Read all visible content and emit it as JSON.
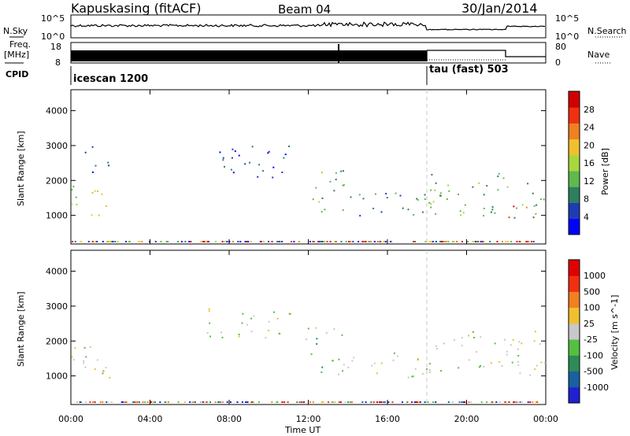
{
  "header": {
    "station": "Kapuskasing (fitACF)",
    "beam": "Beam 04",
    "date": "30/Jan/2014"
  },
  "ops_panels": {
    "nsky_label": "N.Sky",
    "nsky_ticks": [
      "10^5",
      "10^0"
    ],
    "nsearch_label": "N.Search",
    "nsearch_ticks": [
      "10^5",
      "10^0"
    ],
    "freq_label": "Freq.",
    "freq_unit": "[MHz]",
    "freq_ticks": [
      "18",
      "8"
    ],
    "nave_label": "Nave",
    "nave_ticks": [
      "80",
      "0"
    ],
    "cpid_label": "CPID",
    "cpid_segments": [
      {
        "name": "icescan 1200",
        "start_hour": 0,
        "end_hour": 18
      },
      {
        "name": "tau (fast) 503",
        "start_hour": 18,
        "end_hour": 24
      }
    ]
  },
  "chart_data": [
    {
      "type": "heatmap",
      "panel": "power",
      "ylabel": "Slant Range [km]",
      "xlabel": "Time UT",
      "x_ticks": [
        "00:00",
        "04:00",
        "08:00",
        "12:00",
        "16:00",
        "20:00",
        "00:00"
      ],
      "xlim_hours": [
        0,
        24
      ],
      "y_ticks": [
        1000,
        2000,
        3000,
        4000
      ],
      "ylim": [
        180,
        4600
      ],
      "colorbar": {
        "label": "Power [dB]",
        "ticks": [
          "28",
          "24",
          "20",
          "16",
          "12",
          "8",
          "4"
        ],
        "colors": [
          "#0000ff",
          "#1d3cb4",
          "#2d7f5e",
          "#60b84f",
          "#a9d63d",
          "#f0c030",
          "#f08020",
          "#f03010",
          "#d00000"
        ]
      },
      "scatter_regions": [
        {
          "t0": 0.0,
          "t1": 2.3,
          "r0": 1000,
          "r1": 1900,
          "level": 4
        },
        {
          "t0": 0.6,
          "t1": 2.0,
          "r0": 2200,
          "r1": 3000,
          "level": 1
        },
        {
          "t0": 6.8,
          "t1": 11.5,
          "r0": 2100,
          "r1": 3000,
          "level": 1
        },
        {
          "t0": 11.8,
          "t1": 13.8,
          "r0": 1000,
          "r1": 2400,
          "level": 3
        },
        {
          "t0": 13.5,
          "t1": 18.0,
          "r0": 950,
          "r1": 1700,
          "level": 2
        },
        {
          "t0": 18.0,
          "t1": 24.0,
          "r0": 950,
          "r1": 2300,
          "level": 3
        },
        {
          "t0": 21.8,
          "t1": 23.6,
          "r0": 950,
          "r1": 1300,
          "level": 7
        }
      ]
    },
    {
      "type": "heatmap",
      "panel": "velocity",
      "ylabel": "Slant Range [km]",
      "xlabel": "Time UT",
      "x_ticks": [
        "00:00",
        "04:00",
        "08:00",
        "12:00",
        "16:00",
        "20:00",
        "00:00"
      ],
      "xlim_hours": [
        0,
        24
      ],
      "y_ticks": [
        1000,
        2000,
        3000,
        4000
      ],
      "ylim": [
        180,
        4600
      ],
      "colorbar": {
        "label": "Velocity [m s^-1]",
        "ticks": [
          "1000",
          "500",
          "100",
          "25",
          "-25",
          "-100",
          "-500",
          "-1000"
        ],
        "colors": [
          "#2020d0",
          "#1a5fa0",
          "#2e8b57",
          "#55c040",
          "#c8c8c8",
          "#f0c030",
          "#f08020",
          "#f03010",
          "#e00000"
        ]
      },
      "scatter_regions": [
        {
          "t0": 0.0,
          "t1": 2.3,
          "r0": 1000,
          "r1": 1900,
          "level": 4
        },
        {
          "t0": 0.6,
          "t1": 2.0,
          "r0": 900,
          "r1": 1300,
          "level": 5
        },
        {
          "t0": 6.8,
          "t1": 11.5,
          "r0": 2100,
          "r1": 3000,
          "level": 4
        },
        {
          "t0": 11.8,
          "t1": 13.8,
          "r0": 1000,
          "r1": 2400,
          "level": 3
        },
        {
          "t0": 13.5,
          "t1": 18.0,
          "r0": 950,
          "r1": 1700,
          "level": 4
        },
        {
          "t0": 18.0,
          "t1": 24.0,
          "r0": 950,
          "r1": 2300,
          "level": 4
        }
      ]
    }
  ],
  "colors": {
    "ink": "#000000",
    "divider": "#c8c8c8",
    "grey_scatter": "#c8c8c8"
  }
}
